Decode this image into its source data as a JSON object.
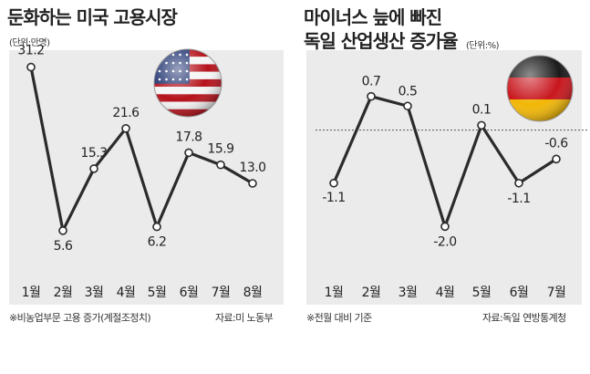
{
  "charts": {
    "left": {
      "title": "둔화하는 미국 고용시장",
      "unit": "(단위:만명)",
      "footnote": "※비농업부문 고용 증가(계절조정치)",
      "source": "자료:미 노동부",
      "flag": "us-flag-icon"
    },
    "right": {
      "title_line1": "마이너스 늪에 빠진",
      "title_line2": "독일 산업생산 증가율",
      "unit": "(단위:%)",
      "footnote": "※전월 대비 기준",
      "source": "자료:독일 연방통계청",
      "flag": "germany-flag-icon"
    }
  },
  "colors": {
    "line": "#2b2b2b",
    "marker_fill": "#ffffff",
    "panel_bg": "#ebebeb",
    "text": "#222222"
  },
  "chart_data": [
    {
      "type": "line",
      "title": "둔화하는 미국 고용시장",
      "unit": "(단위:만명)",
      "categories": [
        "1월",
        "2월",
        "3월",
        "4월",
        "5월",
        "6월",
        "7월",
        "8월"
      ],
      "values": [
        31.2,
        5.6,
        15.3,
        21.6,
        6.2,
        17.8,
        15.9,
        13.0
      ],
      "labels": [
        "31.2",
        "5.6",
        "15.3",
        "21.6",
        "6.2",
        "17.8",
        "15.9",
        "13.0"
      ],
      "ylim": [
        0,
        36
      ],
      "grid": false
    },
    {
      "type": "line",
      "title": "마이너스 늪에 빠진 독일 산업생산 증가율",
      "unit": "(단위:%)",
      "categories": [
        "1월",
        "2월",
        "3월",
        "4월",
        "5월",
        "6월",
        "7월"
      ],
      "values": [
        -1.1,
        0.7,
        0.5,
        -2.0,
        0.1,
        -1.1,
        -0.6
      ],
      "labels": [
        "-1.1",
        "0.7",
        "0.5",
        "-2.0",
        "0.1",
        "-1.1",
        "-0.6"
      ],
      "ylim": [
        -2.6,
        1.3
      ],
      "zero_line": true,
      "grid": false
    }
  ]
}
